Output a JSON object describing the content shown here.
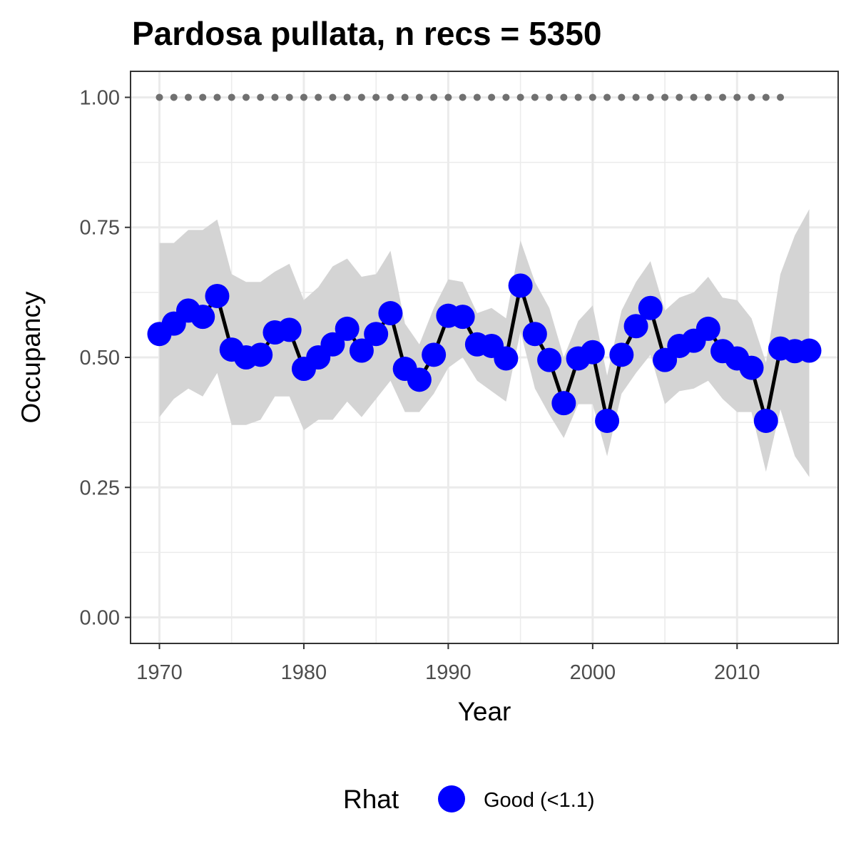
{
  "chart_data": {
    "type": "line",
    "title": "Pardosa pullata, n recs = 5350",
    "xlabel": "Year",
    "ylabel": "Occupancy",
    "xlim": [
      1968,
      2017
    ],
    "ylim": [
      -0.05,
      1.05
    ],
    "x_ticks": [
      1970,
      1980,
      1990,
      2000,
      2010
    ],
    "x_tick_labels": [
      "1970",
      "1980",
      "1990",
      "2000",
      "2010"
    ],
    "y_ticks": [
      0,
      0.25,
      0.5,
      0.75,
      1.0
    ],
    "y_tick_labels": [
      "0.00",
      "0.25",
      "0.50",
      "0.75",
      "1.00"
    ],
    "grid": true,
    "legend": {
      "title": "Rhat",
      "position": "bottom",
      "entries": [
        {
          "label": "Good (<1.1)",
          "color": "#0000ff"
        }
      ]
    },
    "colors": {
      "points": "#0000ff",
      "line": "#000000",
      "ribbon": "#d4d4d4",
      "reference_dots": "#707070",
      "grid": "#ebebeb",
      "panel_border": "#333333"
    },
    "series": [
      {
        "name": "Good (<1.1)",
        "x": [
          1970,
          1971,
          1972,
          1973,
          1974,
          1975,
          1976,
          1977,
          1978,
          1979,
          1980,
          1981,
          1982,
          1983,
          1984,
          1985,
          1986,
          1987,
          1988,
          1989,
          1990,
          1991,
          1992,
          1993,
          1994,
          1995,
          1996,
          1997,
          1998,
          1999,
          2000,
          2001,
          2002,
          2003,
          2004,
          2005,
          2006,
          2007,
          2008,
          2009,
          2010,
          2011,
          2012,
          2013,
          2014,
          2015
        ],
        "y": [
          0.545,
          0.565,
          0.59,
          0.578,
          0.618,
          0.515,
          0.5,
          0.505,
          0.548,
          0.553,
          0.478,
          0.5,
          0.525,
          0.555,
          0.513,
          0.545,
          0.585,
          0.478,
          0.457,
          0.505,
          0.58,
          0.578,
          0.525,
          0.522,
          0.498,
          0.638,
          0.545,
          0.495,
          0.412,
          0.498,
          0.51,
          0.378,
          0.505,
          0.56,
          0.595,
          0.495,
          0.522,
          0.532,
          0.555,
          0.512,
          0.498,
          0.48,
          0.378,
          0.517,
          0.512,
          0.513
        ],
        "lower": [
          0.385,
          0.42,
          0.44,
          0.425,
          0.47,
          0.37,
          0.37,
          0.38,
          0.425,
          0.425,
          0.36,
          0.38,
          0.38,
          0.415,
          0.385,
          0.42,
          0.455,
          0.395,
          0.395,
          0.43,
          0.48,
          0.5,
          0.455,
          0.435,
          0.415,
          0.55,
          0.44,
          0.39,
          0.345,
          0.41,
          0.41,
          0.31,
          0.43,
          0.47,
          0.505,
          0.41,
          0.435,
          0.44,
          0.455,
          0.42,
          0.395,
          0.395,
          0.28,
          0.4,
          0.31,
          0.27
        ],
        "upper": [
          0.72,
          0.72,
          0.745,
          0.745,
          0.765,
          0.66,
          0.645,
          0.645,
          0.665,
          0.68,
          0.61,
          0.635,
          0.675,
          0.69,
          0.655,
          0.66,
          0.705,
          0.565,
          0.525,
          0.595,
          0.65,
          0.645,
          0.585,
          0.595,
          0.575,
          0.725,
          0.645,
          0.595,
          0.5,
          0.57,
          0.6,
          0.465,
          0.59,
          0.645,
          0.685,
          0.59,
          0.615,
          0.625,
          0.655,
          0.615,
          0.61,
          0.575,
          0.49,
          0.66,
          0.735,
          0.785
        ]
      }
    ],
    "reference_line": {
      "y": 1.0,
      "x": [
        1970,
        1971,
        1972,
        1973,
        1974,
        1975,
        1976,
        1977,
        1978,
        1979,
        1980,
        1981,
        1982,
        1983,
        1984,
        1985,
        1986,
        1987,
        1988,
        1989,
        1990,
        1991,
        1992,
        1993,
        1994,
        1995,
        1996,
        1997,
        1998,
        1999,
        2000,
        2001,
        2002,
        2003,
        2004,
        2005,
        2006,
        2007,
        2008,
        2009,
        2010,
        2011,
        2012,
        2013
      ]
    }
  }
}
